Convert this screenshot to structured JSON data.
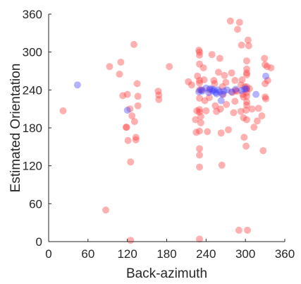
{
  "chart_data": {
    "type": "scatter",
    "title": "",
    "xlabel": "Back-azimuth",
    "ylabel": "Estimated Orientation",
    "xlim": [
      0,
      360
    ],
    "ylim": [
      0,
      360
    ],
    "xticks": [
      "0",
      "60",
      "120",
      "180",
      "240",
      "300",
      "360"
    ],
    "yticks": [
      "0",
      "60",
      "120",
      "180",
      "240",
      "300",
      "360"
    ],
    "grid": false,
    "legend": "none",
    "series": [
      {
        "color": "#ff3b3b",
        "points": [
          [
            22,
            207
          ],
          [
            87,
            50
          ],
          [
            93,
            277
          ],
          [
            108,
            265
          ],
          [
            110,
            284
          ],
          [
            113,
            231
          ],
          [
            118,
            181
          ],
          [
            119,
            181
          ],
          [
            120,
            233
          ],
          [
            121,
            160
          ],
          [
            124,
            210
          ],
          [
            125,
            126
          ],
          [
            125,
            2
          ],
          [
            127,
            199
          ],
          [
            130,
            312
          ],
          [
            131,
            190
          ],
          [
            133,
            165
          ],
          [
            133,
            161
          ],
          [
            135,
            250
          ],
          [
            136,
            230
          ],
          [
            136,
            215
          ],
          [
            167,
            238
          ],
          [
            168,
            232
          ],
          [
            168,
            225
          ],
          [
            184,
            277
          ],
          [
            213,
            253
          ],
          [
            218,
            248
          ],
          [
            224,
            193
          ],
          [
            225,
            173
          ],
          [
            226,
            207
          ],
          [
            227,
            262
          ],
          [
            229,
            303
          ],
          [
            230,
            300
          ],
          [
            230,
            295
          ],
          [
            230,
            281
          ],
          [
            230,
            255
          ],
          [
            230,
            251
          ],
          [
            230,
            240
          ],
          [
            230,
            227
          ],
          [
            230,
            209
          ],
          [
            230,
            205
          ],
          [
            230,
            175
          ],
          [
            230,
            147
          ],
          [
            230,
            137
          ],
          [
            230,
            118
          ],
          [
            230,
            4
          ],
          [
            232,
            198
          ],
          [
            232,
            188
          ],
          [
            234,
            240
          ],
          [
            236,
            275
          ],
          [
            237,
            256
          ],
          [
            238,
            223
          ],
          [
            240,
            207
          ],
          [
            242,
            174
          ],
          [
            245,
            240
          ],
          [
            245,
            228
          ],
          [
            249,
            296
          ],
          [
            252,
            255
          ],
          [
            253,
            250
          ],
          [
            254,
            215
          ],
          [
            256,
            206
          ],
          [
            259,
            268
          ],
          [
            261,
            290
          ],
          [
            262,
            210
          ],
          [
            263,
            172
          ],
          [
            264,
            121
          ],
          [
            265,
            245
          ],
          [
            266,
            233
          ],
          [
            268,
            263
          ],
          [
            270,
            252
          ],
          [
            271,
            217
          ],
          [
            274,
            177
          ],
          [
            277,
            349
          ],
          [
            279,
            267
          ],
          [
            280,
            236
          ],
          [
            282,
            204
          ],
          [
            284,
            255
          ],
          [
            284,
            222
          ],
          [
            285,
            239
          ],
          [
            287,
            238
          ],
          [
            288,
            336
          ],
          [
            290,
            18
          ],
          [
            291,
            347
          ],
          [
            293,
            248
          ],
          [
            293,
            206
          ],
          [
            294,
            311
          ],
          [
            295,
            256
          ],
          [
            296,
            233
          ],
          [
            297,
            229
          ],
          [
            297,
            196
          ],
          [
            298,
            165
          ],
          [
            299,
            245
          ],
          [
            301,
            151
          ],
          [
            301,
            208
          ],
          [
            302,
            286
          ],
          [
            302,
            273
          ],
          [
            302,
            267
          ],
          [
            302,
            264
          ],
          [
            302,
            245
          ],
          [
            302,
            241
          ],
          [
            302,
            236
          ],
          [
            302,
            230
          ],
          [
            302,
            221
          ],
          [
            302,
            216
          ],
          [
            302,
            193
          ],
          [
            303,
            18
          ],
          [
            304,
            319
          ],
          [
            305,
            310
          ],
          [
            306,
            242
          ],
          [
            310,
            210
          ],
          [
            313,
            181
          ],
          [
            318,
            191
          ],
          [
            320,
            211
          ],
          [
            325,
            199
          ],
          [
            327,
            144
          ],
          [
            329,
            290
          ],
          [
            330,
            280
          ],
          [
            330,
            250
          ],
          [
            330,
            229
          ],
          [
            331,
            226
          ],
          [
            333,
            277
          ],
          [
            334,
            255
          ],
          [
            339,
            275
          ]
        ]
      },
      {
        "color": "#4040ff",
        "points": [
          [
            44,
            248
          ],
          [
            120,
            208
          ],
          [
            229,
            237
          ],
          [
            232,
            240
          ],
          [
            234,
            238
          ],
          [
            240,
            243
          ],
          [
            244,
            236
          ],
          [
            246,
            242
          ],
          [
            249,
            241
          ],
          [
            250,
            238
          ],
          [
            252,
            240
          ],
          [
            255,
            236
          ],
          [
            256,
            234
          ],
          [
            258,
            240
          ],
          [
            261,
            237
          ],
          [
            263,
            223
          ],
          [
            265,
            233
          ],
          [
            267,
            238
          ],
          [
            272,
            240
          ],
          [
            279,
            237
          ],
          [
            285,
            241
          ],
          [
            294,
            239
          ],
          [
            299,
            241
          ],
          [
            301,
            242
          ],
          [
            316,
            233
          ],
          [
            331,
            262
          ]
        ]
      }
    ]
  }
}
